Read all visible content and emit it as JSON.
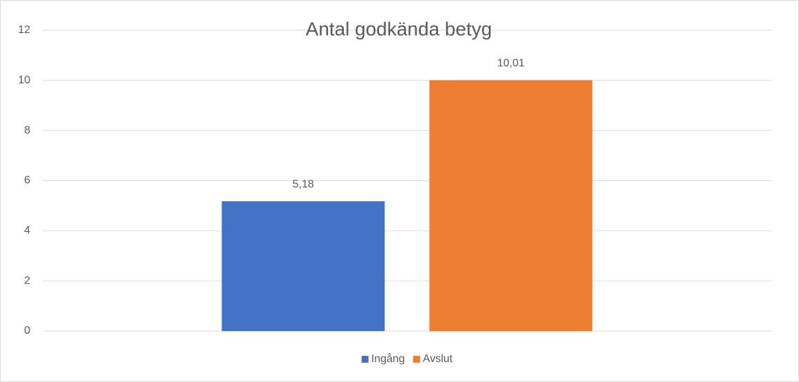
{
  "chart_data": {
    "type": "bar",
    "title": "Antal godkända betyg",
    "categories": [
      null
    ],
    "series": [
      {
        "name": "Ingång",
        "color": "#4472c4",
        "values": [
          5.18
        ],
        "value_labels": [
          "5,18"
        ]
      },
      {
        "name": "Avslut",
        "color": "#ed7d31",
        "values": [
          10.01
        ],
        "value_labels": [
          "10,01"
        ]
      }
    ],
    "ylim": [
      0,
      12
    ],
    "yticks": [
      0,
      2,
      4,
      6,
      8,
      10,
      12
    ],
    "grid": true,
    "legend": "bottom"
  }
}
